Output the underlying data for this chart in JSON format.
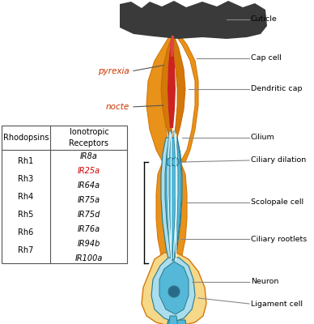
{
  "bg_color": "#ffffff",
  "cuticle_color": "#3a3a3a",
  "orange_outer": "#E8921A",
  "orange_mid": "#D4780A",
  "orange_inner": "#C86800",
  "red_color": "#CC2222",
  "blue_cilium": "#7ACCE8",
  "blue_scolopale": "#55B8D8",
  "blue_scolopale_dark": "#3A9ABB",
  "blue_neuron": "#88CCDD",
  "blue_outer": "#AADDED",
  "yellow_lig": "#F5D888",
  "yellow_dark": "#D4A030",
  "teal_outline": "#2A7A8A",
  "gray_line": "#999999",
  "pyrexia_color": "#CC3300",
  "nocte_color": "#CC3300",
  "ir25a_color": "#CC0000",
  "rhodopsins": [
    "Rh1",
    "Rh3",
    "Rh4",
    "Rh5",
    "Rh6",
    "Rh7"
  ],
  "ir_receptors": [
    "IR8a",
    "IR25a",
    "IR64a",
    "IR75a",
    "IR75d",
    "IR76a",
    "IR94b",
    "IR100a"
  ]
}
